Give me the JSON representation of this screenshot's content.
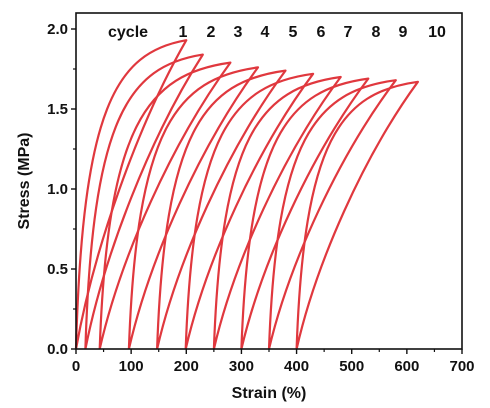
{
  "chart_data": {
    "type": "line",
    "xlabel": "Strain (%)",
    "ylabel": "Stress (MPa)",
    "xlim": [
      0,
      700
    ],
    "ylim": [
      0,
      2.1
    ],
    "x_ticks": [
      "0",
      "100",
      "200",
      "300",
      "400",
      "500",
      "600",
      "700"
    ],
    "y_ticks": [
      "0.0",
      "0.5",
      "1.0",
      "1.5",
      "2.0"
    ],
    "line_color": "#e0383e",
    "annotation_prefix": "cycle",
    "cycle_labels": [
      "1",
      "2",
      "3",
      "4",
      "5",
      "6",
      "7",
      "8",
      "9",
      "10"
    ],
    "series": [
      {
        "start_strain": 0,
        "peak_strain": 200,
        "peak_stress": 1.93
      },
      {
        "start_strain": 17,
        "peak_strain": 230,
        "peak_stress": 1.84
      },
      {
        "start_strain": 43,
        "peak_strain": 280,
        "peak_stress": 1.79
      },
      {
        "start_strain": 96,
        "peak_strain": 330,
        "peak_stress": 1.76
      },
      {
        "start_strain": 147,
        "peak_strain": 380,
        "peak_stress": 1.74
      },
      {
        "start_strain": 199,
        "peak_strain": 430,
        "peak_stress": 1.72
      },
      {
        "start_strain": 250,
        "peak_strain": 480,
        "peak_stress": 1.7
      },
      {
        "start_strain": 300,
        "peak_strain": 530,
        "peak_stress": 1.69
      },
      {
        "start_strain": 350,
        "peak_strain": 580,
        "peak_stress": 1.68
      },
      {
        "start_strain": 400,
        "peak_strain": 620,
        "peak_stress": 1.67
      }
    ]
  }
}
